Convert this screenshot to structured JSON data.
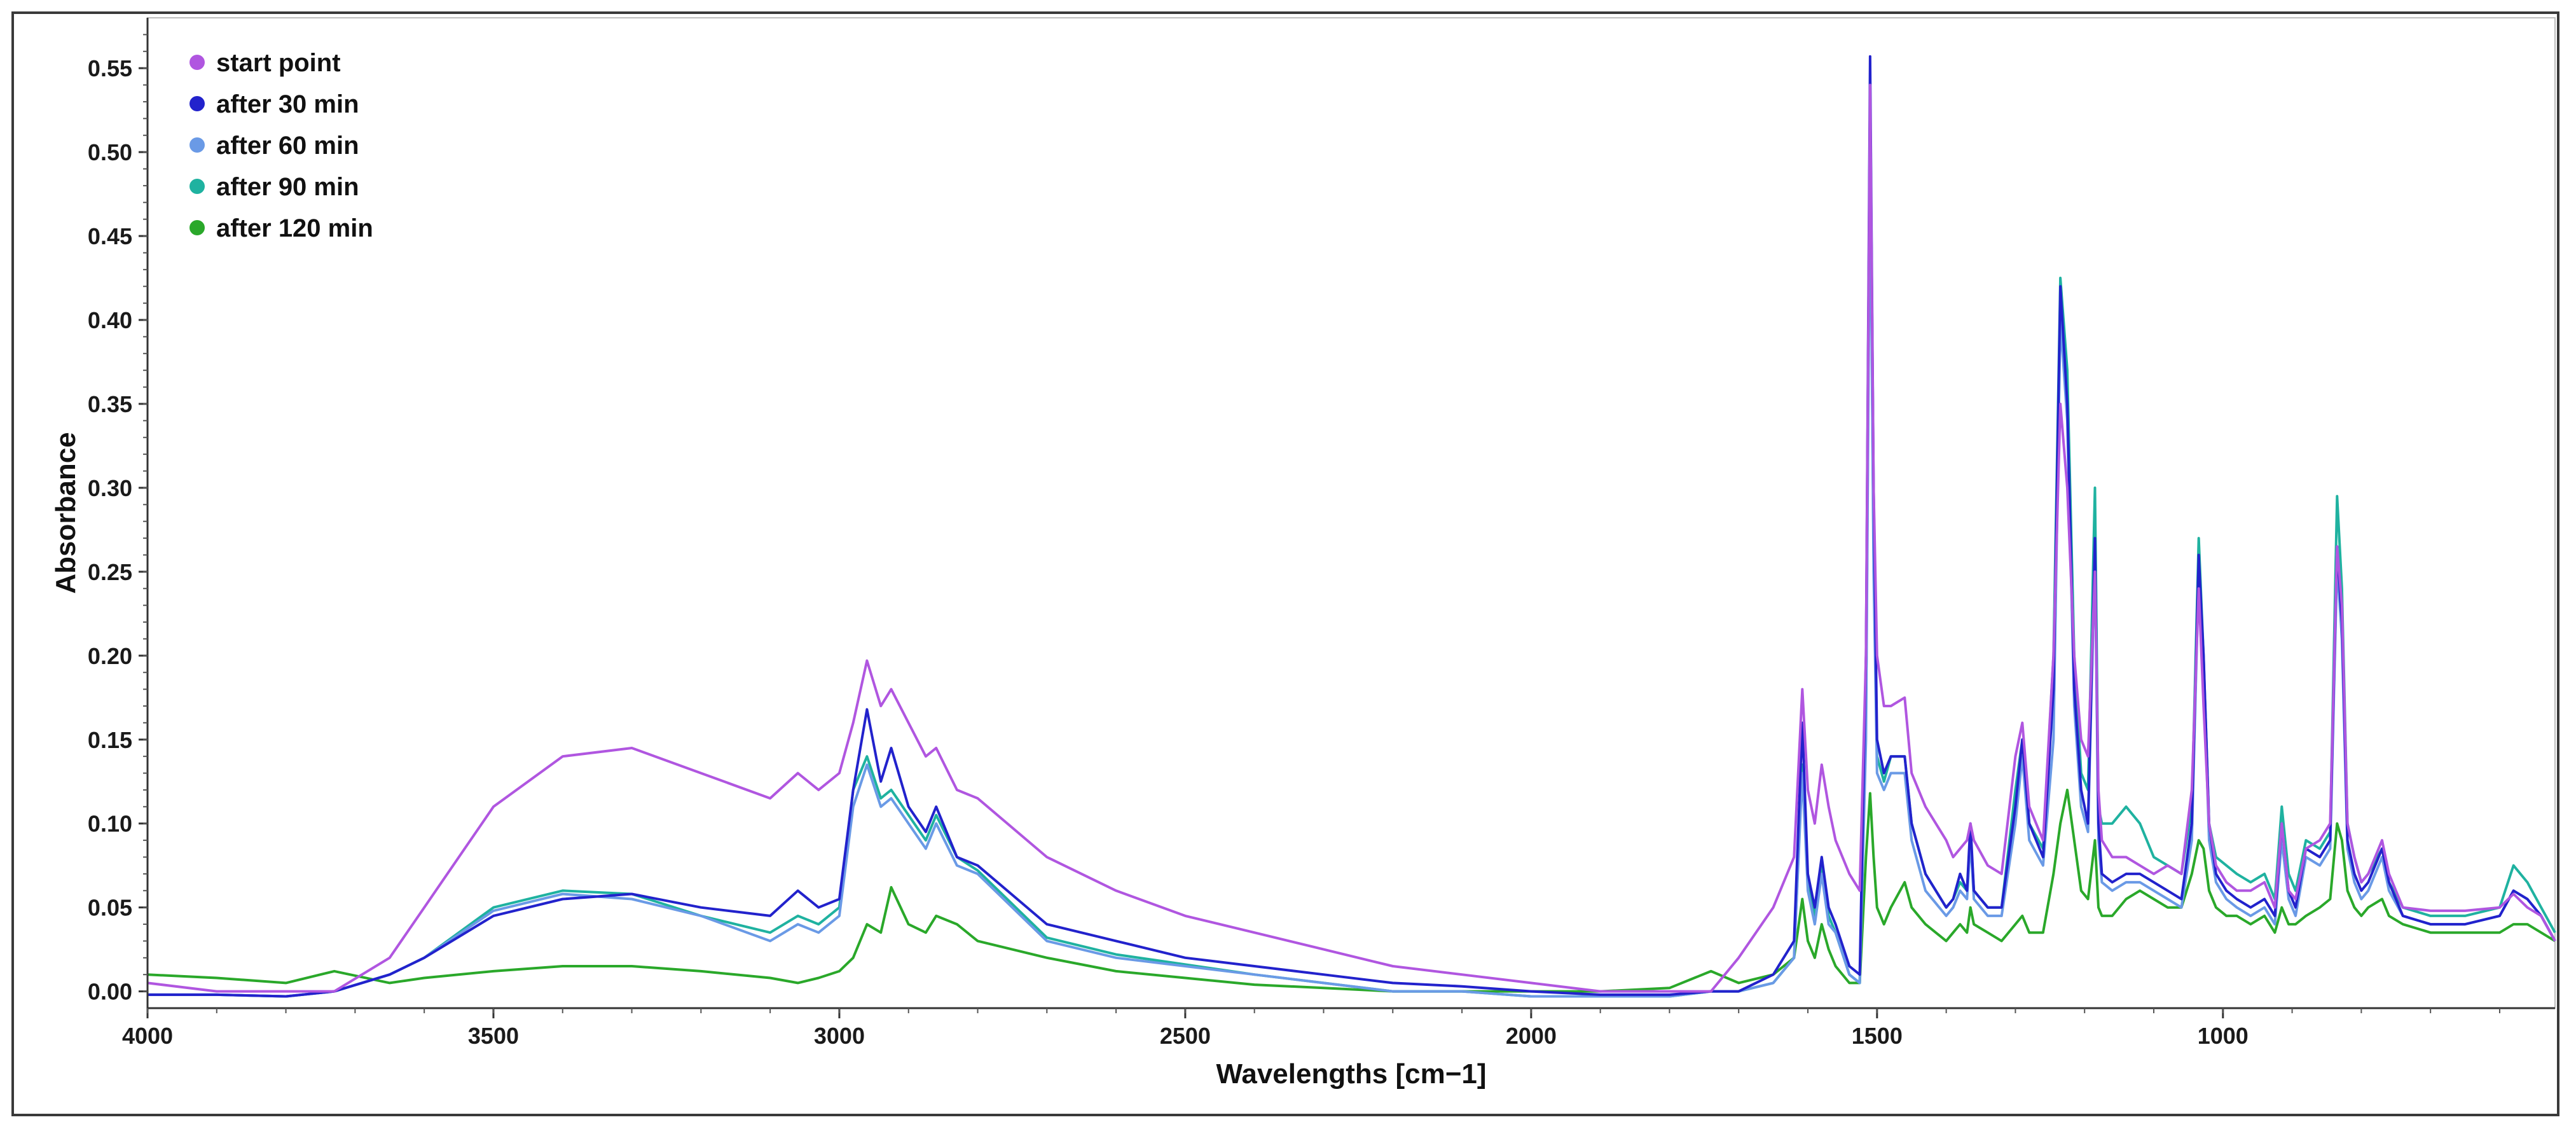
{
  "chart_data": {
    "type": "line",
    "title": "",
    "xlabel": "Wavelengths [cm−1]",
    "ylabel": "Absorbance",
    "xlim": [
      4000,
      520
    ],
    "ylim": [
      -0.01,
      0.58
    ],
    "x_reversed": true,
    "x_ticks": [
      4000,
      3500,
      3000,
      2500,
      2000,
      1500,
      1000
    ],
    "y_ticks": [
      0.0,
      0.05,
      0.1,
      0.15,
      0.2,
      0.25,
      0.3,
      0.35,
      0.4,
      0.45,
      0.5,
      0.55
    ],
    "y_tick_labels": [
      "0.00",
      "0.05",
      "0.10",
      "0.15",
      "0.20",
      "0.25",
      "0.30",
      "0.35",
      "0.40",
      "0.45",
      "0.50",
      "0.55"
    ],
    "legend_position": "top-left",
    "grid": false,
    "x": [
      4000,
      3900,
      3800,
      3730,
      3650,
      3600,
      3500,
      3400,
      3300,
      3200,
      3100,
      3060,
      3030,
      3000,
      2980,
      2960,
      2940,
      2925,
      2900,
      2875,
      2860,
      2830,
      2800,
      2700,
      2600,
      2500,
      2400,
      2300,
      2200,
      2100,
      2000,
      1900,
      1800,
      1740,
      1700,
      1650,
      1620,
      1608,
      1600,
      1590,
      1580,
      1570,
      1560,
      1540,
      1525,
      1516,
      1510,
      1505,
      1500,
      1490,
      1480,
      1460,
      1450,
      1430,
      1400,
      1390,
      1380,
      1370,
      1365,
      1360,
      1340,
      1320,
      1300,
      1290,
      1280,
      1260,
      1245,
      1235,
      1225,
      1215,
      1205,
      1195,
      1185,
      1180,
      1175,
      1160,
      1140,
      1120,
      1100,
      1080,
      1060,
      1045,
      1035,
      1028,
      1020,
      1010,
      995,
      980,
      960,
      940,
      925,
      915,
      905,
      895,
      880,
      860,
      845,
      835,
      828,
      820,
      810,
      800,
      790,
      770,
      760,
      740,
      700,
      650,
      600,
      580,
      560,
      540,
      520
    ],
    "series": [
      {
        "name": "start point",
        "color": "#b056e0",
        "values": [
          0.005,
          0.0,
          0.0,
          0.0,
          0.02,
          0.05,
          0.11,
          0.14,
          0.145,
          0.13,
          0.115,
          0.13,
          0.12,
          0.13,
          0.16,
          0.197,
          0.17,
          0.18,
          0.16,
          0.14,
          0.145,
          0.12,
          0.115,
          0.08,
          0.06,
          0.045,
          0.035,
          0.025,
          0.015,
          0.01,
          0.005,
          0.0,
          0.0,
          0.0,
          0.02,
          0.05,
          0.08,
          0.18,
          0.12,
          0.1,
          0.135,
          0.11,
          0.09,
          0.07,
          0.06,
          0.2,
          0.54,
          0.3,
          0.2,
          0.17,
          0.17,
          0.175,
          0.13,
          0.11,
          0.09,
          0.08,
          0.085,
          0.09,
          0.1,
          0.09,
          0.075,
          0.07,
          0.14,
          0.16,
          0.11,
          0.09,
          0.2,
          0.35,
          0.3,
          0.2,
          0.15,
          0.14,
          0.25,
          0.12,
          0.09,
          0.08,
          0.08,
          0.075,
          0.07,
          0.075,
          0.07,
          0.12,
          0.24,
          0.17,
          0.1,
          0.075,
          0.065,
          0.06,
          0.06,
          0.065,
          0.05,
          0.1,
          0.06,
          0.055,
          0.085,
          0.09,
          0.1,
          0.265,
          0.23,
          0.1,
          0.08,
          0.065,
          0.07,
          0.09,
          0.07,
          0.05,
          0.048,
          0.048,
          0.05,
          0.058,
          0.05,
          0.045,
          0.03
        ]
      },
      {
        "name": "after 30 min",
        "color": "#2222cc",
        "values": [
          -0.002,
          -0.002,
          -0.003,
          0.0,
          0.01,
          0.02,
          0.045,
          0.055,
          0.058,
          0.05,
          0.045,
          0.06,
          0.05,
          0.055,
          0.12,
          0.168,
          0.125,
          0.145,
          0.11,
          0.095,
          0.11,
          0.08,
          0.075,
          0.04,
          0.03,
          0.02,
          0.015,
          0.01,
          0.005,
          0.003,
          0.0,
          -0.002,
          -0.002,
          0.0,
          0.0,
          0.01,
          0.03,
          0.16,
          0.07,
          0.05,
          0.08,
          0.05,
          0.04,
          0.015,
          0.01,
          0.2,
          0.557,
          0.3,
          0.15,
          0.13,
          0.14,
          0.14,
          0.1,
          0.07,
          0.05,
          0.055,
          0.07,
          0.06,
          0.1,
          0.06,
          0.05,
          0.05,
          0.11,
          0.15,
          0.1,
          0.08,
          0.18,
          0.42,
          0.35,
          0.18,
          0.12,
          0.1,
          0.27,
          0.1,
          0.07,
          0.065,
          0.07,
          0.07,
          0.065,
          0.06,
          0.055,
          0.1,
          0.26,
          0.2,
          0.1,
          0.07,
          0.06,
          0.055,
          0.05,
          0.055,
          0.045,
          0.1,
          0.06,
          0.05,
          0.085,
          0.08,
          0.09,
          0.265,
          0.22,
          0.09,
          0.07,
          0.06,
          0.065,
          0.085,
          0.065,
          0.045,
          0.04,
          0.04,
          0.045,
          0.06,
          0.055,
          0.045,
          0.03
        ]
      },
      {
        "name": "after 60 min",
        "color": "#6a9ae6",
        "values": [
          -0.002,
          -0.002,
          -0.003,
          0.0,
          0.01,
          0.02,
          0.048,
          0.058,
          0.055,
          0.045,
          0.03,
          0.04,
          0.035,
          0.045,
          0.11,
          0.135,
          0.11,
          0.115,
          0.1,
          0.085,
          0.1,
          0.075,
          0.07,
          0.03,
          0.02,
          0.015,
          0.01,
          0.005,
          0.0,
          0.0,
          -0.003,
          -0.003,
          -0.003,
          0.0,
          0.0,
          0.005,
          0.02,
          0.13,
          0.06,
          0.04,
          0.07,
          0.04,
          0.035,
          0.01,
          0.005,
          0.15,
          0.5,
          0.25,
          0.13,
          0.12,
          0.13,
          0.13,
          0.09,
          0.06,
          0.045,
          0.05,
          0.06,
          0.055,
          0.09,
          0.055,
          0.045,
          0.045,
          0.1,
          0.14,
          0.09,
          0.075,
          0.15,
          0.4,
          0.34,
          0.17,
          0.11,
          0.095,
          0.26,
          0.09,
          0.065,
          0.06,
          0.065,
          0.065,
          0.06,
          0.055,
          0.05,
          0.09,
          0.25,
          0.19,
          0.09,
          0.065,
          0.055,
          0.05,
          0.045,
          0.05,
          0.04,
          0.09,
          0.055,
          0.045,
          0.08,
          0.075,
          0.085,
          0.255,
          0.21,
          0.085,
          0.065,
          0.055,
          0.06,
          0.08,
          0.06,
          0.045,
          0.04,
          0.04,
          0.045,
          0.06,
          0.055,
          0.045,
          0.03
        ]
      },
      {
        "name": "after 90 min",
        "color": "#1fb2a0",
        "values": [
          -0.002,
          -0.002,
          -0.003,
          0.0,
          0.01,
          0.02,
          0.05,
          0.06,
          0.058,
          0.045,
          0.035,
          0.045,
          0.04,
          0.05,
          0.12,
          0.14,
          0.115,
          0.12,
          0.105,
          0.09,
          0.105,
          0.08,
          0.072,
          0.032,
          0.022,
          0.016,
          0.01,
          0.005,
          0.0,
          0.0,
          -0.003,
          -0.003,
          -0.003,
          0.0,
          0.0,
          0.005,
          0.02,
          0.135,
          0.065,
          0.045,
          0.075,
          0.045,
          0.035,
          0.01,
          0.005,
          0.16,
          0.51,
          0.26,
          0.14,
          0.125,
          0.14,
          0.14,
          0.1,
          0.07,
          0.05,
          0.055,
          0.065,
          0.06,
          0.095,
          0.06,
          0.05,
          0.05,
          0.12,
          0.15,
          0.1,
          0.085,
          0.2,
          0.425,
          0.37,
          0.2,
          0.13,
          0.12,
          0.3,
          0.11,
          0.1,
          0.1,
          0.11,
          0.1,
          0.08,
          0.075,
          0.07,
          0.11,
          0.27,
          0.2,
          0.1,
          0.08,
          0.075,
          0.07,
          0.065,
          0.07,
          0.055,
          0.11,
          0.07,
          0.06,
          0.09,
          0.085,
          0.095,
          0.295,
          0.24,
          0.1,
          0.08,
          0.065,
          0.07,
          0.085,
          0.065,
          0.05,
          0.045,
          0.045,
          0.05,
          0.075,
          0.065,
          0.05,
          0.035
        ]
      },
      {
        "name": "after 120 min",
        "color": "#2aa82a",
        "values": [
          0.01,
          0.008,
          0.005,
          0.012,
          0.005,
          0.008,
          0.012,
          0.015,
          0.015,
          0.012,
          0.008,
          0.005,
          0.008,
          0.012,
          0.02,
          0.04,
          0.035,
          0.062,
          0.04,
          0.035,
          0.045,
          0.04,
          0.03,
          0.02,
          0.012,
          0.008,
          0.004,
          0.002,
          0.0,
          0.0,
          0.0,
          0.0,
          0.002,
          0.012,
          0.005,
          0.01,
          0.02,
          0.055,
          0.03,
          0.02,
          0.04,
          0.025,
          0.015,
          0.005,
          0.005,
          0.08,
          0.118,
          0.08,
          0.05,
          0.04,
          0.05,
          0.065,
          0.05,
          0.04,
          0.03,
          0.035,
          0.04,
          0.035,
          0.05,
          0.04,
          0.035,
          0.03,
          0.04,
          0.045,
          0.035,
          0.035,
          0.07,
          0.1,
          0.12,
          0.09,
          0.06,
          0.055,
          0.09,
          0.05,
          0.045,
          0.045,
          0.055,
          0.06,
          0.055,
          0.05,
          0.05,
          0.07,
          0.09,
          0.085,
          0.06,
          0.05,
          0.045,
          0.045,
          0.04,
          0.045,
          0.035,
          0.05,
          0.04,
          0.04,
          0.045,
          0.05,
          0.055,
          0.1,
          0.09,
          0.06,
          0.05,
          0.045,
          0.05,
          0.055,
          0.045,
          0.04,
          0.035,
          0.035,
          0.035,
          0.04,
          0.04,
          0.035,
          0.03
        ]
      }
    ]
  }
}
